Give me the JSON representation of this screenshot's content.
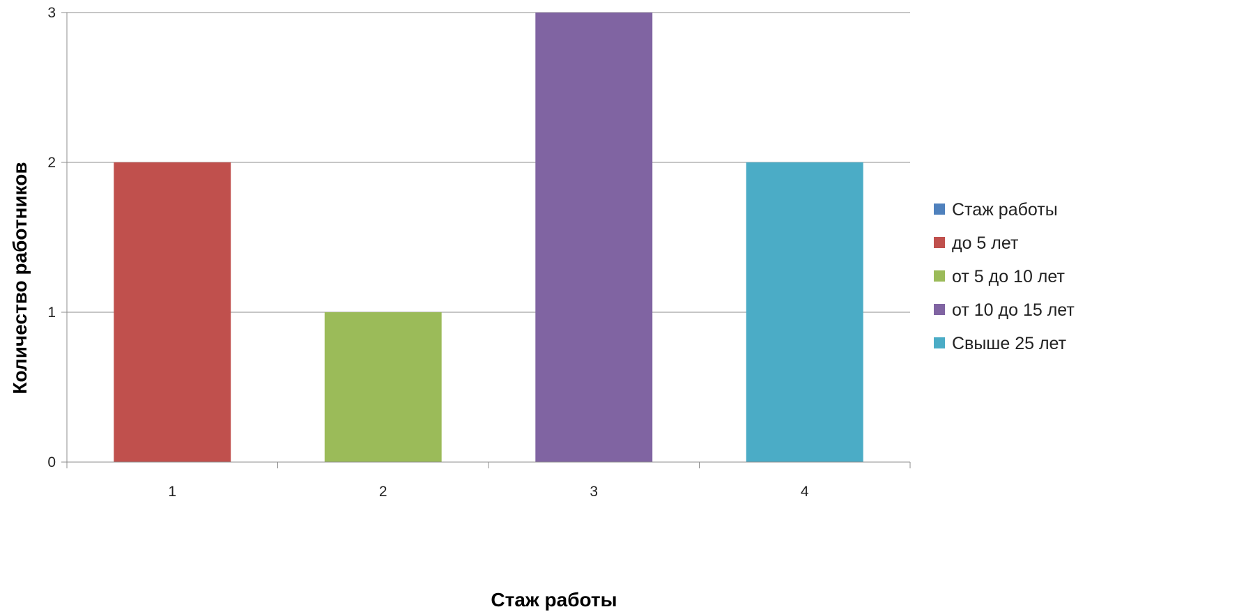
{
  "chart_data": {
    "type": "bar",
    "categories": [
      "1",
      "2",
      "3",
      "4"
    ],
    "series": [
      {
        "name": "Стаж работы",
        "values": [
          null,
          null,
          null,
          null
        ],
        "color": "#4F81BD"
      },
      {
        "name": "до 5 лет",
        "values": [
          2,
          null,
          null,
          null
        ],
        "color": "#C0504D"
      },
      {
        "name": "от 5 до 10 лет",
        "values": [
          null,
          1,
          null,
          null
        ],
        "color": "#9BBB59"
      },
      {
        "name": "от 10 до 15 лет",
        "values": [
          null,
          null,
          3,
          null
        ],
        "color": "#8064A2"
      },
      {
        "name": "Свыше 25 лет",
        "values": [
          null,
          null,
          null,
          2
        ],
        "color": "#4BACC6"
      }
    ],
    "y_ticks": [
      "0",
      "1",
      "2",
      "3"
    ],
    "xlabel": "Стаж работы",
    "ylabel": "Количество работников",
    "ylim": [
      0,
      3
    ],
    "grid": true,
    "legend_position": "right"
  }
}
